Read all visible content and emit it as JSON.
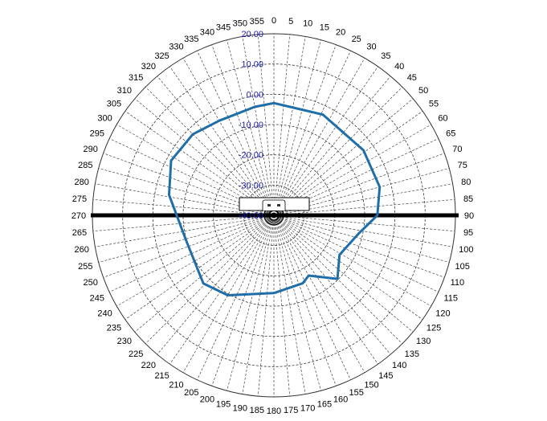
{
  "chart_data": {
    "type": "polar-line",
    "title": "",
    "angle_unit": "degrees",
    "angle_direction": "clockwise",
    "zero_direction": "top",
    "angle_ticks": [
      0,
      5,
      10,
      15,
      20,
      25,
      30,
      35,
      40,
      45,
      50,
      55,
      60,
      65,
      70,
      75,
      80,
      85,
      90,
      95,
      100,
      105,
      110,
      115,
      120,
      125,
      130,
      135,
      140,
      145,
      150,
      155,
      160,
      165,
      170,
      175,
      180,
      185,
      190,
      195,
      200,
      205,
      210,
      215,
      220,
      225,
      230,
      235,
      240,
      245,
      250,
      255,
      260,
      265,
      270,
      275,
      280,
      285,
      290,
      295,
      300,
      305,
      310,
      315,
      320,
      325,
      330,
      335,
      340,
      345,
      350,
      355
    ],
    "radial_range": [
      -40,
      20
    ],
    "radial_ticks": [
      "-40.00",
      "-30.00",
      "-20.00",
      "-10.00",
      "0.00",
      "10.00",
      "20.00"
    ],
    "grid": true,
    "series": [
      {
        "angles": [
          0,
          26,
          54,
          75,
          90,
          102,
          121,
          135,
          150,
          157,
          180,
          210,
          226,
          252,
          259,
          281,
          298,
          315,
          330,
          350,
          360
        ],
        "values": [
          -2.9,
          -3.0,
          -3.4,
          -3.8,
          -5.8,
          -11.3,
          -14.7,
          -10.3,
          -17.0,
          -15.6,
          -14.3,
          -9.5,
          -7.6,
          -9.9,
          -9.5,
          -4.7,
          -1.5,
          -2.1,
          -3.9,
          -3.6,
          -2.9
        ]
      }
    ],
    "colors": {
      "trace": "#1f6ea8",
      "radial_labels": "#1a1aa6",
      "grid": "#333333"
    }
  }
}
